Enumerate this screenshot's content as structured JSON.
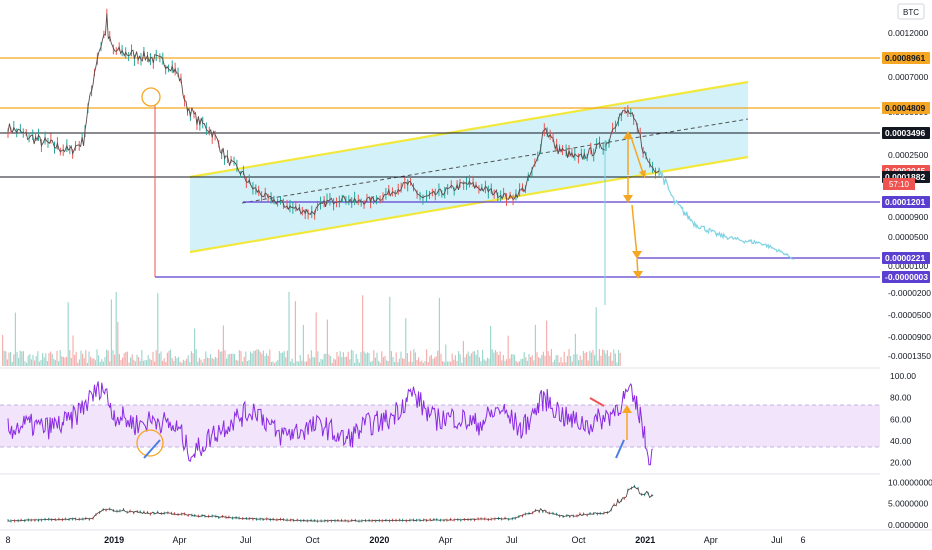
{
  "header": {
    "currency": "BTC",
    "countdown": "57:10"
  },
  "colors": {
    "orange": "#f5a623",
    "yellow": "#f2e83c",
    "channel_fill": "#cdeff8",
    "purple": "#5b3fd0",
    "rsi_line": "#8a2be2",
    "rsi_band": "#f1e4fb",
    "black_line": "#131722",
    "red": "#ef5350",
    "teal": "#26a69a",
    "projection": "#7fd3e3"
  },
  "chart_data": [
    {
      "type": "line",
      "id": "price",
      "x_range": [
        "2018-08-08",
        "2021-08-06"
      ],
      "ylim": [
        -0.000135,
        0.0013
      ],
      "right_axis_ticks": [
        "0.0012000",
        "0.0007000",
        "0.0005000",
        "0.0002500",
        "0.0000900",
        "0.0000500",
        "0.0000100",
        "-0.0000200",
        "-0.0000500",
        "-0.0000900",
        "-0.0001350"
      ],
      "price_levels": [
        {
          "label": "0.0008961",
          "value": 0.0008961,
          "color": "orange"
        },
        {
          "label": "0.0004809",
          "value": 0.0004809,
          "color": "orange"
        },
        {
          "label": "0.0003496",
          "value": 0.0003496,
          "color": "black"
        },
        {
          "label": "0.0002045",
          "value": 0.0002045,
          "color": "red"
        },
        {
          "label": "0.0001882",
          "value": 0.0001882,
          "color": "black"
        },
        {
          "label": "0.0001201",
          "value": 0.0001201,
          "color": "purple"
        },
        {
          "label": "0.0000221",
          "value": 2.21e-05,
          "color": "purple"
        },
        {
          "label": "-0.0000003",
          "value": -3e-07,
          "color": "purple"
        }
      ],
      "series": [
        {
          "x": [
            "2018-08-08",
            "2018-09-01",
            "2018-10-01",
            "2018-11-01",
            "2018-11-20",
            "2018-12-01",
            "2018-12-10",
            "2018-12-20",
            "2019-01-01",
            "2019-01-20",
            "2019-02-10",
            "2019-03-01",
            "2019-03-20",
            "2019-04-01",
            "2019-04-10",
            "2019-04-25",
            "2019-05-15",
            "2019-06-05",
            "2019-06-25",
            "2019-07-10",
            "2019-08-01",
            "2019-09-01",
            "2019-10-01",
            "2019-10-20",
            "2019-11-10",
            "2019-12-01",
            "2020-01-01",
            "2020-01-20",
            "2020-02-10",
            "2020-03-01",
            "2020-04-01",
            "2020-05-01",
            "2020-06-01",
            "2020-07-01",
            "2020-07-20",
            "2020-08-05",
            "2020-08-15",
            "2020-09-01",
            "2020-10-01",
            "2020-10-20",
            "2020-11-10",
            "2020-11-25",
            "2020-12-10",
            "2020-12-20",
            "2021-01-01",
            "2021-01-10",
            "2021-01-20"
          ],
          "y": [
            0.00038,
            0.00034,
            0.00031,
            0.00028,
            0.00032,
            0.0006,
            0.00095,
            0.00122,
            0.00098,
            0.00095,
            0.00092,
            0.00088,
            0.00082,
            0.0007,
            0.0005,
            0.00042,
            0.00036,
            0.00025,
            0.0002,
            0.00016,
            0.00013,
            0.00011,
            0.0001,
            0.00012,
            0.00013,
            0.00012,
            0.00013,
            0.00015,
            0.00017,
            0.00013,
            0.00015,
            0.00017,
            0.00015,
            0.00013,
            0.00016,
            0.00024,
            0.00038,
            0.00029,
            0.00025,
            0.00028,
            0.00031,
            0.00044,
            0.00046,
            0.00038,
            0.00026,
            0.00022,
            0.00021
          ]
        },
        {
          "name": "",
          "x": [
            "2021-01-20",
            "2021-02-10",
            "2021-03-10",
            "2021-04-10",
            "2021-05-10",
            "2021-06-10",
            "2021-07-10",
            "2021-07-25"
          ],
          "y": [
            0.00021,
            0.00012,
            8e-05,
            6e-05,
            5e-05,
            4.5e-05,
            3e-05,
            2e-05
          ]
        }
      ]
    },
    {
      "type": "bar",
      "id": "volume",
      "right_axis_ticks": []
    },
    {
      "type": "line",
      "id": "rsi",
      "ylim": [
        15,
        100
      ],
      "right_axis_ticks": [
        "100.00",
        "80.00",
        "60.00",
        "40.00",
        "20.00"
      ],
      "band": [
        30,
        70
      ],
      "series": [
        {
          "x": [
            "2018-08-08",
            "2018-09-01",
            "2018-10-01",
            "2018-11-01",
            "2018-12-01",
            "2018-12-15",
            "2019-01-01",
            "2019-02-01",
            "2019-03-01",
            "2019-04-01",
            "2019-04-10",
            "2019-04-20",
            "2019-05-15",
            "2019-06-15",
            "2019-07-15",
            "2019-08-15",
            "2019-09-15",
            "2019-10-15",
            "2019-11-15",
            "2019-12-15",
            "2020-01-15",
            "2020-02-15",
            "2020-03-15",
            "2020-04-15",
            "2020-05-15",
            "2020-06-15",
            "2020-07-15",
            "2020-08-15",
            "2020-09-15",
            "2020-10-15",
            "2020-11-15",
            "2020-12-10",
            "2020-12-25",
            "2021-01-05",
            "2021-01-12"
          ],
          "y": [
            50,
            55,
            52,
            58,
            80,
            92,
            65,
            55,
            60,
            50,
            35,
            28,
            45,
            60,
            70,
            45,
            50,
            55,
            40,
            55,
            60,
            85,
            60,
            62,
            55,
            70,
            50,
            80,
            60,
            55,
            65,
            85,
            65,
            25,
            30
          ]
        }
      ]
    },
    {
      "type": "line",
      "id": "lower-indicator",
      "ylim": [
        0,
        11
      ],
      "right_axis_ticks": [
        "10.0000000",
        "5.0000000",
        "0.0000000"
      ],
      "series": [
        {
          "x": [
            "2018-08-08",
            "2018-12-01",
            "2018-12-20",
            "2019-02-01",
            "2019-04-01",
            "2019-07-01",
            "2019-10-01",
            "2020-01-01",
            "2020-04-01",
            "2020-07-01",
            "2020-08-10",
            "2020-09-10",
            "2020-10-10",
            "2020-11-10",
            "2020-12-01",
            "2020-12-15",
            "2021-01-01",
            "2021-01-15"
          ],
          "y": [
            1.0,
            1.5,
            3.8,
            3.0,
            2.5,
            1.5,
            1.0,
            1.0,
            1.2,
            1.5,
            3.5,
            2.0,
            2.5,
            3.0,
            6.5,
            8.5,
            7.5,
            6.0
          ]
        }
      ]
    }
  ],
  "x_axis": {
    "ticks": [
      {
        "label": "8",
        "date": "2018-08-08",
        "bold": false
      },
      {
        "label": "2019",
        "date": "2019-01-01",
        "bold": true
      },
      {
        "label": "Apr",
        "date": "2019-04-01",
        "bold": false
      },
      {
        "label": "Jul",
        "date": "2019-07-01",
        "bold": false
      },
      {
        "label": "Oct",
        "date": "2019-10-01",
        "bold": false
      },
      {
        "label": "2020",
        "date": "2020-01-01",
        "bold": true
      },
      {
        "label": "Apr",
        "date": "2020-04-01",
        "bold": false
      },
      {
        "label": "Jul",
        "date": "2020-07-01",
        "bold": false
      },
      {
        "label": "Oct",
        "date": "2020-10-01",
        "bold": false
      },
      {
        "label": "2021",
        "date": "2021-01-01",
        "bold": true
      },
      {
        "label": "Apr",
        "date": "2021-04-01",
        "bold": false
      },
      {
        "label": "Jul",
        "date": "2021-07-01",
        "bold": false
      },
      {
        "label": "6",
        "date": "2021-08-06",
        "bold": false
      }
    ]
  }
}
